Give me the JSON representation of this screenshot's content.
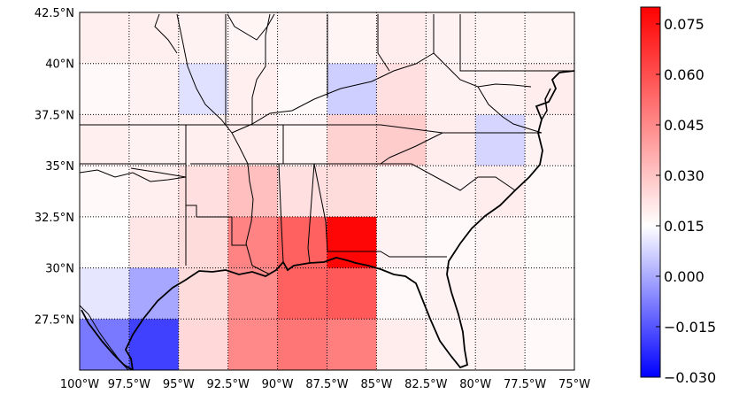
{
  "map": {
    "lon_range": [
      -100,
      -75
    ],
    "lat_range": [
      25,
      42.5
    ],
    "lon_ticks": [
      {
        "value": -100,
        "label": "100°W"
      },
      {
        "value": -97.5,
        "label": "97.5°W"
      },
      {
        "value": -95,
        "label": "95°W"
      },
      {
        "value": -92.5,
        "label": "92.5°W"
      },
      {
        "value": -90,
        "label": "90°W"
      },
      {
        "value": -87.5,
        "label": "87.5°W"
      },
      {
        "value": -85,
        "label": "85°W"
      },
      {
        "value": -82.5,
        "label": "82.5°W"
      },
      {
        "value": -80,
        "label": "80°W"
      },
      {
        "value": -77.5,
        "label": "77.5°W"
      },
      {
        "value": -75,
        "label": "75°W"
      }
    ],
    "lat_ticks": [
      {
        "value": 42.5,
        "label": "42.5°N"
      },
      {
        "value": 40,
        "label": "40°N"
      },
      {
        "value": 37.5,
        "label": "37.5°N"
      },
      {
        "value": 35,
        "label": "35°N"
      },
      {
        "value": 32.5,
        "label": "32.5°N"
      },
      {
        "value": 30,
        "label": "30°N"
      },
      {
        "value": 27.5,
        "label": "27.5°N"
      }
    ],
    "grid": "dotted",
    "cell_lon_edges": [
      -100,
      -97.5,
      -95,
      -92.5,
      -90,
      -87.5,
      -85,
      -82.5,
      -80,
      -77.5,
      -75
    ],
    "cell_lat_edges": [
      25,
      27.5,
      30,
      32.5,
      35,
      37.5,
      40,
      42.5
    ],
    "cell_values": [
      [
        0.005,
        0.005,
        0.004,
        0.003,
        0.004,
        0.003,
        0.006,
        0.004,
        0.003,
        0.003
      ],
      [
        0.002,
        0.004,
        -0.002,
        0.005,
        0.002,
        -0.005,
        0.01,
        0.004,
        0.004,
        0.006
      ],
      [
        0.005,
        0.004,
        0.005,
        0.006,
        0.003,
        0.014,
        0.016,
        0.006,
        -0.004,
        0.004
      ],
      [
        0.002,
        0.005,
        0.01,
        0.02,
        0.01,
        0.011,
        0.004,
        0.004,
        0.006,
        0.002
      ],
      [
        0.0,
        0.008,
        0.011,
        0.039,
        0.05,
        0.078,
        0.004,
        0.002,
        0.003,
        0.001
      ],
      [
        -0.001,
        -0.012,
        0.011,
        0.036,
        0.05,
        0.052,
        0.002,
        0.004,
        0.005,
        0.002
      ],
      [
        -0.02,
        -0.03,
        0.012,
        0.037,
        0.043,
        0.04,
        0.006,
        0.003,
        0.004,
        0.002
      ]
    ]
  },
  "colorbar": {
    "vmin": -0.03,
    "vmax": 0.08,
    "colors": {
      "low": "#0000ff",
      "mid": "#ffffff",
      "high": "#ff0000"
    },
    "ticks": [
      {
        "value": 0.075,
        "label": "0.075"
      },
      {
        "value": 0.06,
        "label": "0.060"
      },
      {
        "value": 0.045,
        "label": "0.045"
      },
      {
        "value": 0.03,
        "label": "0.030"
      },
      {
        "value": 0.015,
        "label": "0.015"
      },
      {
        "value": 0.0,
        "label": "0.000"
      },
      {
        "value": -0.015,
        "label": "−0.015"
      },
      {
        "value": -0.03,
        "label": "−0.030"
      }
    ]
  }
}
